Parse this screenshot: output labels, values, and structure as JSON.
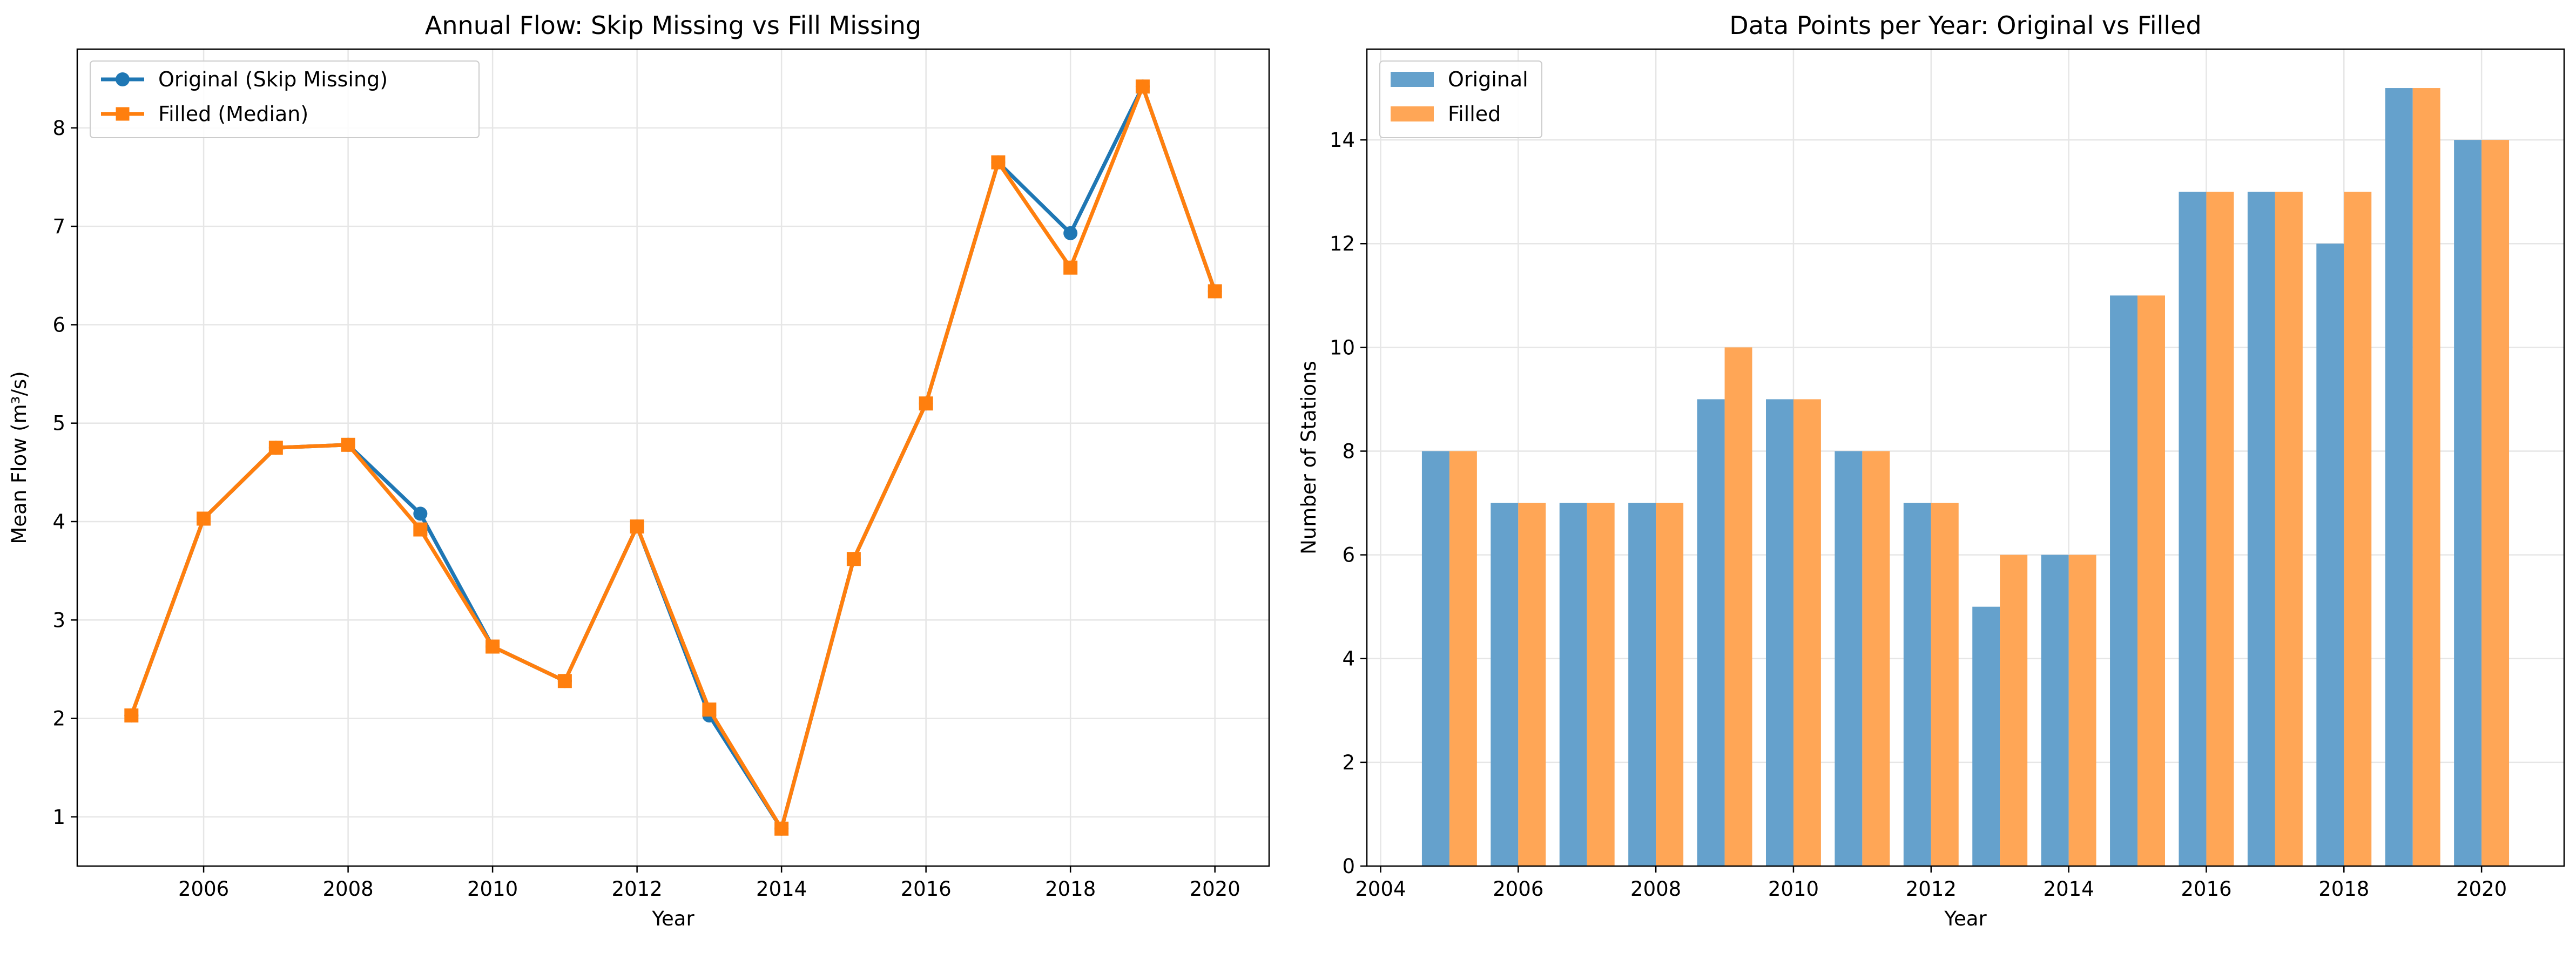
{
  "chart_data": [
    {
      "type": "line",
      "title": "Annual Flow: Skip Missing vs Fill Missing",
      "xlabel": "Year",
      "ylabel": "Mean Flow (m³/s)",
      "xlim": [
        2004.25,
        2020.75
      ],
      "ylim": [
        0.5,
        8.8
      ],
      "xticks": [
        2006,
        2008,
        2010,
        2012,
        2014,
        2016,
        2018,
        2020
      ],
      "yticks": [
        1,
        2,
        3,
        4,
        5,
        6,
        7,
        8
      ],
      "grid": true,
      "legend_position": "top-left",
      "series": [
        {
          "name": "Original (Skip Missing)",
          "color": "#1f77b4",
          "marker": "circle",
          "x": [
            2005,
            2006,
            2007,
            2008,
            2009,
            2010,
            2011,
            2012,
            2013,
            2014,
            2015,
            2016,
            2017,
            2018,
            2019,
            2020
          ],
          "values": [
            2.03,
            4.03,
            4.75,
            4.78,
            4.08,
            2.73,
            2.38,
            3.95,
            2.03,
            0.88,
            3.62,
            5.2,
            7.65,
            6.93,
            8.42,
            6.34
          ]
        },
        {
          "name": "Filled (Median)",
          "color": "#ff7f0e",
          "marker": "square",
          "x": [
            2005,
            2006,
            2007,
            2008,
            2009,
            2010,
            2011,
            2012,
            2013,
            2014,
            2015,
            2016,
            2017,
            2018,
            2019,
            2020
          ],
          "values": [
            2.03,
            4.03,
            4.75,
            4.78,
            3.92,
            2.73,
            2.38,
            3.95,
            2.09,
            0.88,
            3.62,
            5.2,
            7.65,
            6.58,
            8.42,
            6.34
          ]
        }
      ]
    },
    {
      "type": "bar",
      "title": "Data Points per Year: Original vs Filled",
      "xlabel": "Year",
      "ylabel": "Number of Stations",
      "xlim": [
        2003.8,
        2021.2
      ],
      "ylim": [
        0,
        15.75
      ],
      "xticks": [
        2004,
        2006,
        2008,
        2010,
        2012,
        2014,
        2016,
        2018,
        2020
      ],
      "yticks": [
        0,
        2,
        4,
        6,
        8,
        10,
        12,
        14
      ],
      "grid": true,
      "legend_position": "top-left",
      "categories": [
        2005,
        2006,
        2007,
        2008,
        2009,
        2010,
        2011,
        2012,
        2013,
        2014,
        2015,
        2016,
        2017,
        2018,
        2019,
        2020
      ],
      "series": [
        {
          "name": "Original",
          "color": "#65a1cc",
          "values": [
            8,
            7,
            7,
            7,
            9,
            9,
            8,
            7,
            5,
            6,
            11,
            13,
            13,
            12,
            15,
            14
          ]
        },
        {
          "name": "Filled",
          "color": "#ffa656",
          "values": [
            8,
            7,
            7,
            7,
            10,
            9,
            8,
            7,
            6,
            6,
            11,
            13,
            13,
            13,
            15,
            14
          ]
        }
      ]
    }
  ]
}
